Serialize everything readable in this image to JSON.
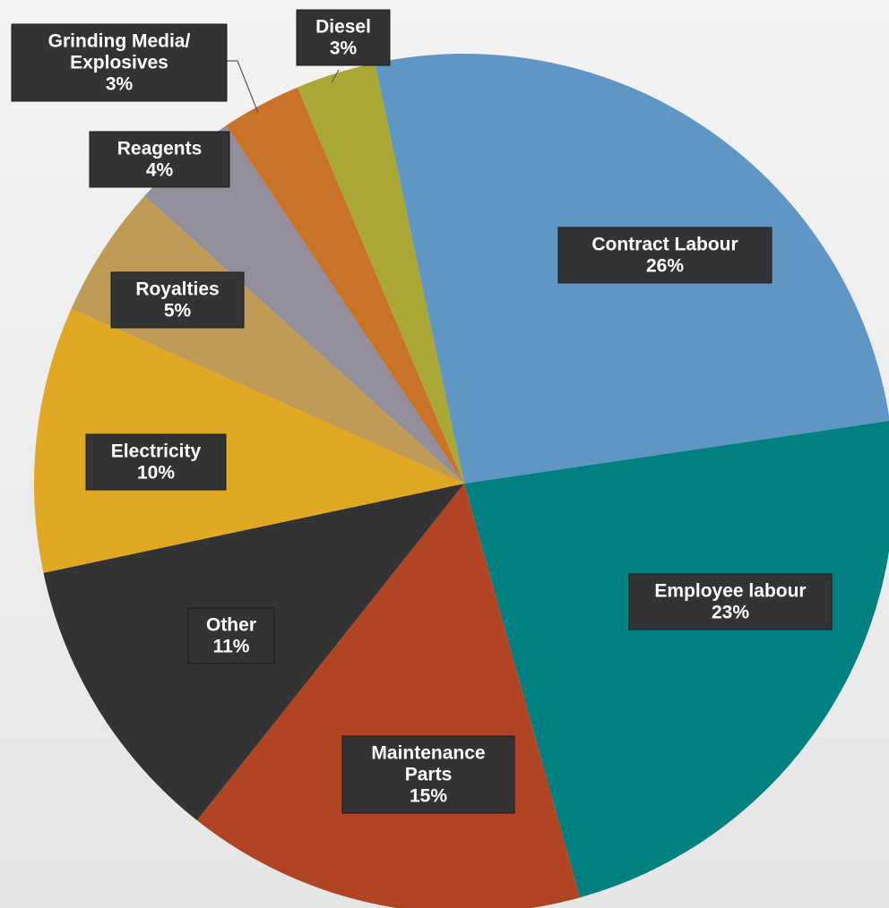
{
  "chart_data": {
    "type": "pie",
    "slices": [
      {
        "name": "Contract Labour",
        "value": 26,
        "label": "26%",
        "color": "#6096C4"
      },
      {
        "name": "Employee labour",
        "value": 23,
        "label": "23%",
        "color": "#008080"
      },
      {
        "name": "Maintenance Parts",
        "value": 15,
        "label": "15%",
        "color": "#B04423"
      },
      {
        "name": "Other",
        "value": 11,
        "label": "11%",
        "color": "#333333"
      },
      {
        "name": "Electricity",
        "value": 10,
        "label": "10%",
        "color": "#E0A823"
      },
      {
        "name": "Royalties",
        "value": 5,
        "label": "5%",
        "color": "#BF9B55"
      },
      {
        "name": "Reagents",
        "value": 4,
        "label": "4%",
        "color": "#938E9B"
      },
      {
        "name": "Grinding Media/ Explosives",
        "value": 3,
        "label": "3%",
        "color": "#C97328"
      },
      {
        "name": "Diesel",
        "value": 3,
        "label": "3%",
        "color": "#A9A834"
      }
    ],
    "legend": "none",
    "data_labels": "category and percentage"
  }
}
